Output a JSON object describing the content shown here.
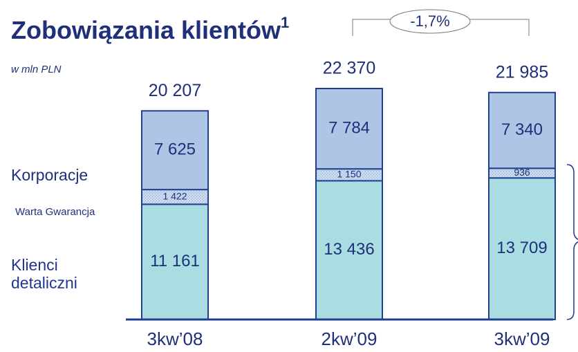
{
  "chart_data": {
    "type": "stacked-bar",
    "title": "Zobowiązania klientów",
    "title_footnote": "1",
    "subtitle": "w mln PLN",
    "annotation": "-1,7%",
    "categories": [
      "3kw’08",
      "2kw’09",
      "3kw’09"
    ],
    "series": [
      {
        "name": "Klienci detaliczni",
        "color": "#a9dde1",
        "values": [
          11161,
          13436,
          13709
        ],
        "value_labels": [
          "11 161",
          "13 436",
          "13 709"
        ]
      },
      {
        "name": "Warta Gwarancja",
        "color": "#c9d9ee",
        "values": [
          1422,
          1150,
          936
        ],
        "value_labels": [
          "1 422",
          "1 150",
          "936"
        ]
      },
      {
        "name": "Korporacje",
        "color": "#afc5e6",
        "values": [
          7625,
          7784,
          7340
        ],
        "value_labels": [
          "7 625",
          "7 784",
          "7 340"
        ]
      }
    ],
    "totals": {
      "values": [
        20207,
        22370,
        21985
      ],
      "value_labels": [
        "20 207",
        "22 370",
        "21 985"
      ]
    }
  }
}
